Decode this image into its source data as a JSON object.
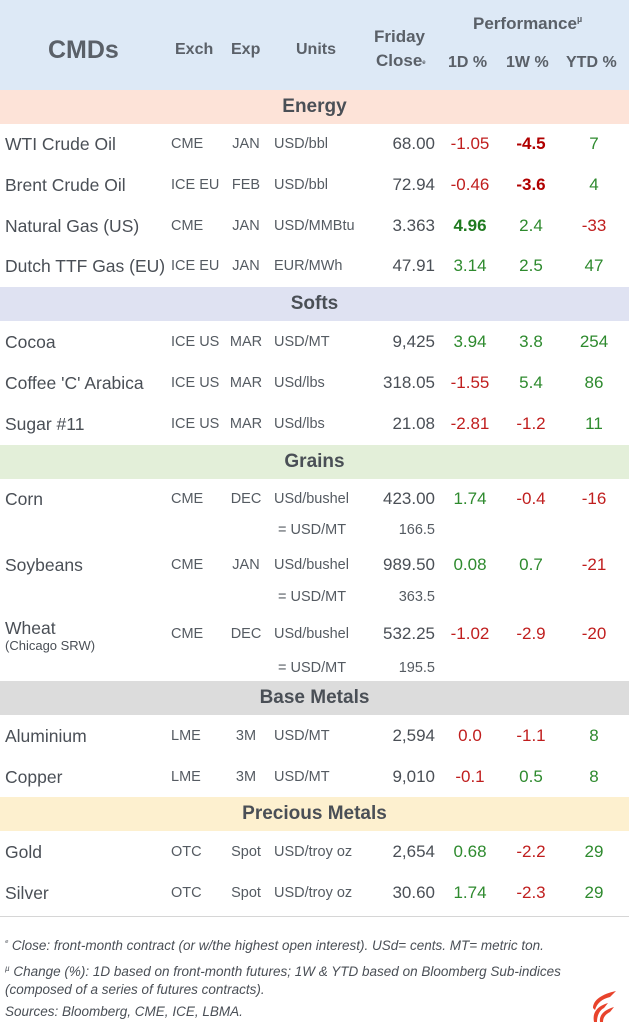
{
  "header": {
    "title": "CMDs",
    "exch": "Exch",
    "exp": "Exp",
    "units": "Units",
    "friday": "Friday",
    "close": "Close",
    "close_mark": "ᵉ",
    "performance": "Performance",
    "perf_mark": "µ",
    "d1": "1D %",
    "w1": "1W %",
    "ytd": "YTD %",
    "bg_color": "#dde9f6"
  },
  "sections": [
    {
      "title": "Energy",
      "color": "#fde3d8"
    },
    {
      "title": "Softs",
      "color": "#dfe2f2"
    },
    {
      "title": "Grains",
      "color": "#e3efd9"
    },
    {
      "title": "Base Metals",
      "color": "#dcdcdc"
    },
    {
      "title": "Precious Metals",
      "color": "#fdf0cf"
    }
  ],
  "rows": [
    {
      "name": "WTI Crude Oil",
      "exch": "CME",
      "exp": "JAN",
      "units": "USD/bbl",
      "close": "68.00",
      "d1": "-1.05",
      "w1": "-4.5",
      "ytd": "7"
    },
    {
      "name": "Brent Crude Oil",
      "exch": "ICE EU",
      "exp": "FEB",
      "units": "USD/bbl",
      "close": "72.94",
      "d1": "-0.46",
      "w1": "-3.6",
      "ytd": "4"
    },
    {
      "name": "Natural Gas (US)",
      "exch": "CME",
      "exp": "JAN",
      "units": "USD/MMBtu",
      "close": "3.363",
      "d1": "4.96",
      "w1": "2.4",
      "ytd": "-33"
    },
    {
      "name": "Dutch TTF Gas (EU)",
      "exch": "ICE EU",
      "exp": "JAN",
      "units": "EUR/MWh",
      "close": "47.91",
      "d1": "3.14",
      "w1": "2.5",
      "ytd": "47"
    },
    {
      "name": "Cocoa",
      "exch": "ICE US",
      "exp": "MAR",
      "units": "USD/MT",
      "close": "9,425",
      "d1": "3.94",
      "w1": "3.8",
      "ytd": "254"
    },
    {
      "name": "Coffee 'C' Arabica",
      "exch": "ICE US",
      "exp": "MAR",
      "units": "USd/lbs",
      "close": "318.05",
      "d1": "-1.55",
      "w1": "5.4",
      "ytd": "86"
    },
    {
      "name": "Sugar #11",
      "exch": "ICE US",
      "exp": "MAR",
      "units": "USd/lbs",
      "close": "21.08",
      "d1": "-2.81",
      "w1": "-1.2",
      "ytd": "11"
    },
    {
      "name": "Corn",
      "exch": "CME",
      "exp": "DEC",
      "units": "USd/bushel",
      "close": "423.00",
      "d1": "1.74",
      "w1": "-0.4",
      "ytd": "-16",
      "conv_label": "= USD/MT",
      "conv_value": "166.5"
    },
    {
      "name": "Soybeans",
      "exch": "CME",
      "exp": "JAN",
      "units": "USd/bushel",
      "close": "989.50",
      "d1": "0.08",
      "w1": "0.7",
      "ytd": "-21",
      "conv_label": "= USD/MT",
      "conv_value": "363.5"
    },
    {
      "name": "Wheat",
      "name_sub": "(Chicago SRW)",
      "exch": "CME",
      "exp": "DEC",
      "units": "USd/bushel",
      "close": "532.25",
      "d1": "-1.02",
      "w1": "-2.9",
      "ytd": "-20",
      "conv_label": "= USD/MT",
      "conv_value": "195.5"
    },
    {
      "name": "Aluminium",
      "exch": "LME",
      "exp": "3M",
      "units": "USD/MT",
      "close": "2,594",
      "d1": "0.0",
      "w1": "-1.1",
      "ytd": "8"
    },
    {
      "name": "Copper",
      "exch": "LME",
      "exp": "3M",
      "units": "USD/MT",
      "close": "9,010",
      "d1": "-0.1",
      "w1": "0.5",
      "ytd": "8"
    },
    {
      "name": "Gold",
      "exch": "OTC",
      "exp": "Spot",
      "units": "USD/troy oz",
      "close": "2,654",
      "d1": "0.68",
      "w1": "-2.2",
      "ytd": "29"
    },
    {
      "name": "Silver",
      "exch": "OTC",
      "exp": "Spot",
      "units": "USD/troy oz",
      "close": "30.60",
      "d1": "1.74",
      "w1": "-2.3",
      "ytd": "29"
    }
  ],
  "footnotes": {
    "note1_mark": "ᵉ",
    "note1": "Close: front-month contract (or w/the highest open interest). USd= cents. MT= metric ton.",
    "note2_mark": "µ",
    "note2": "Change (%): 1D based on front-month futures; 1W & YTD based on Bloomberg Sub-indices (composed of a series of futures contracts).",
    "sources": "Sources: Bloomberg, CME, ICE, LBMA."
  },
  "colors": {
    "positive": "#2e8a2e",
    "negative": "#c01e1e",
    "logo": "#e8432c"
  },
  "logo_icon": "flame-logo-icon"
}
